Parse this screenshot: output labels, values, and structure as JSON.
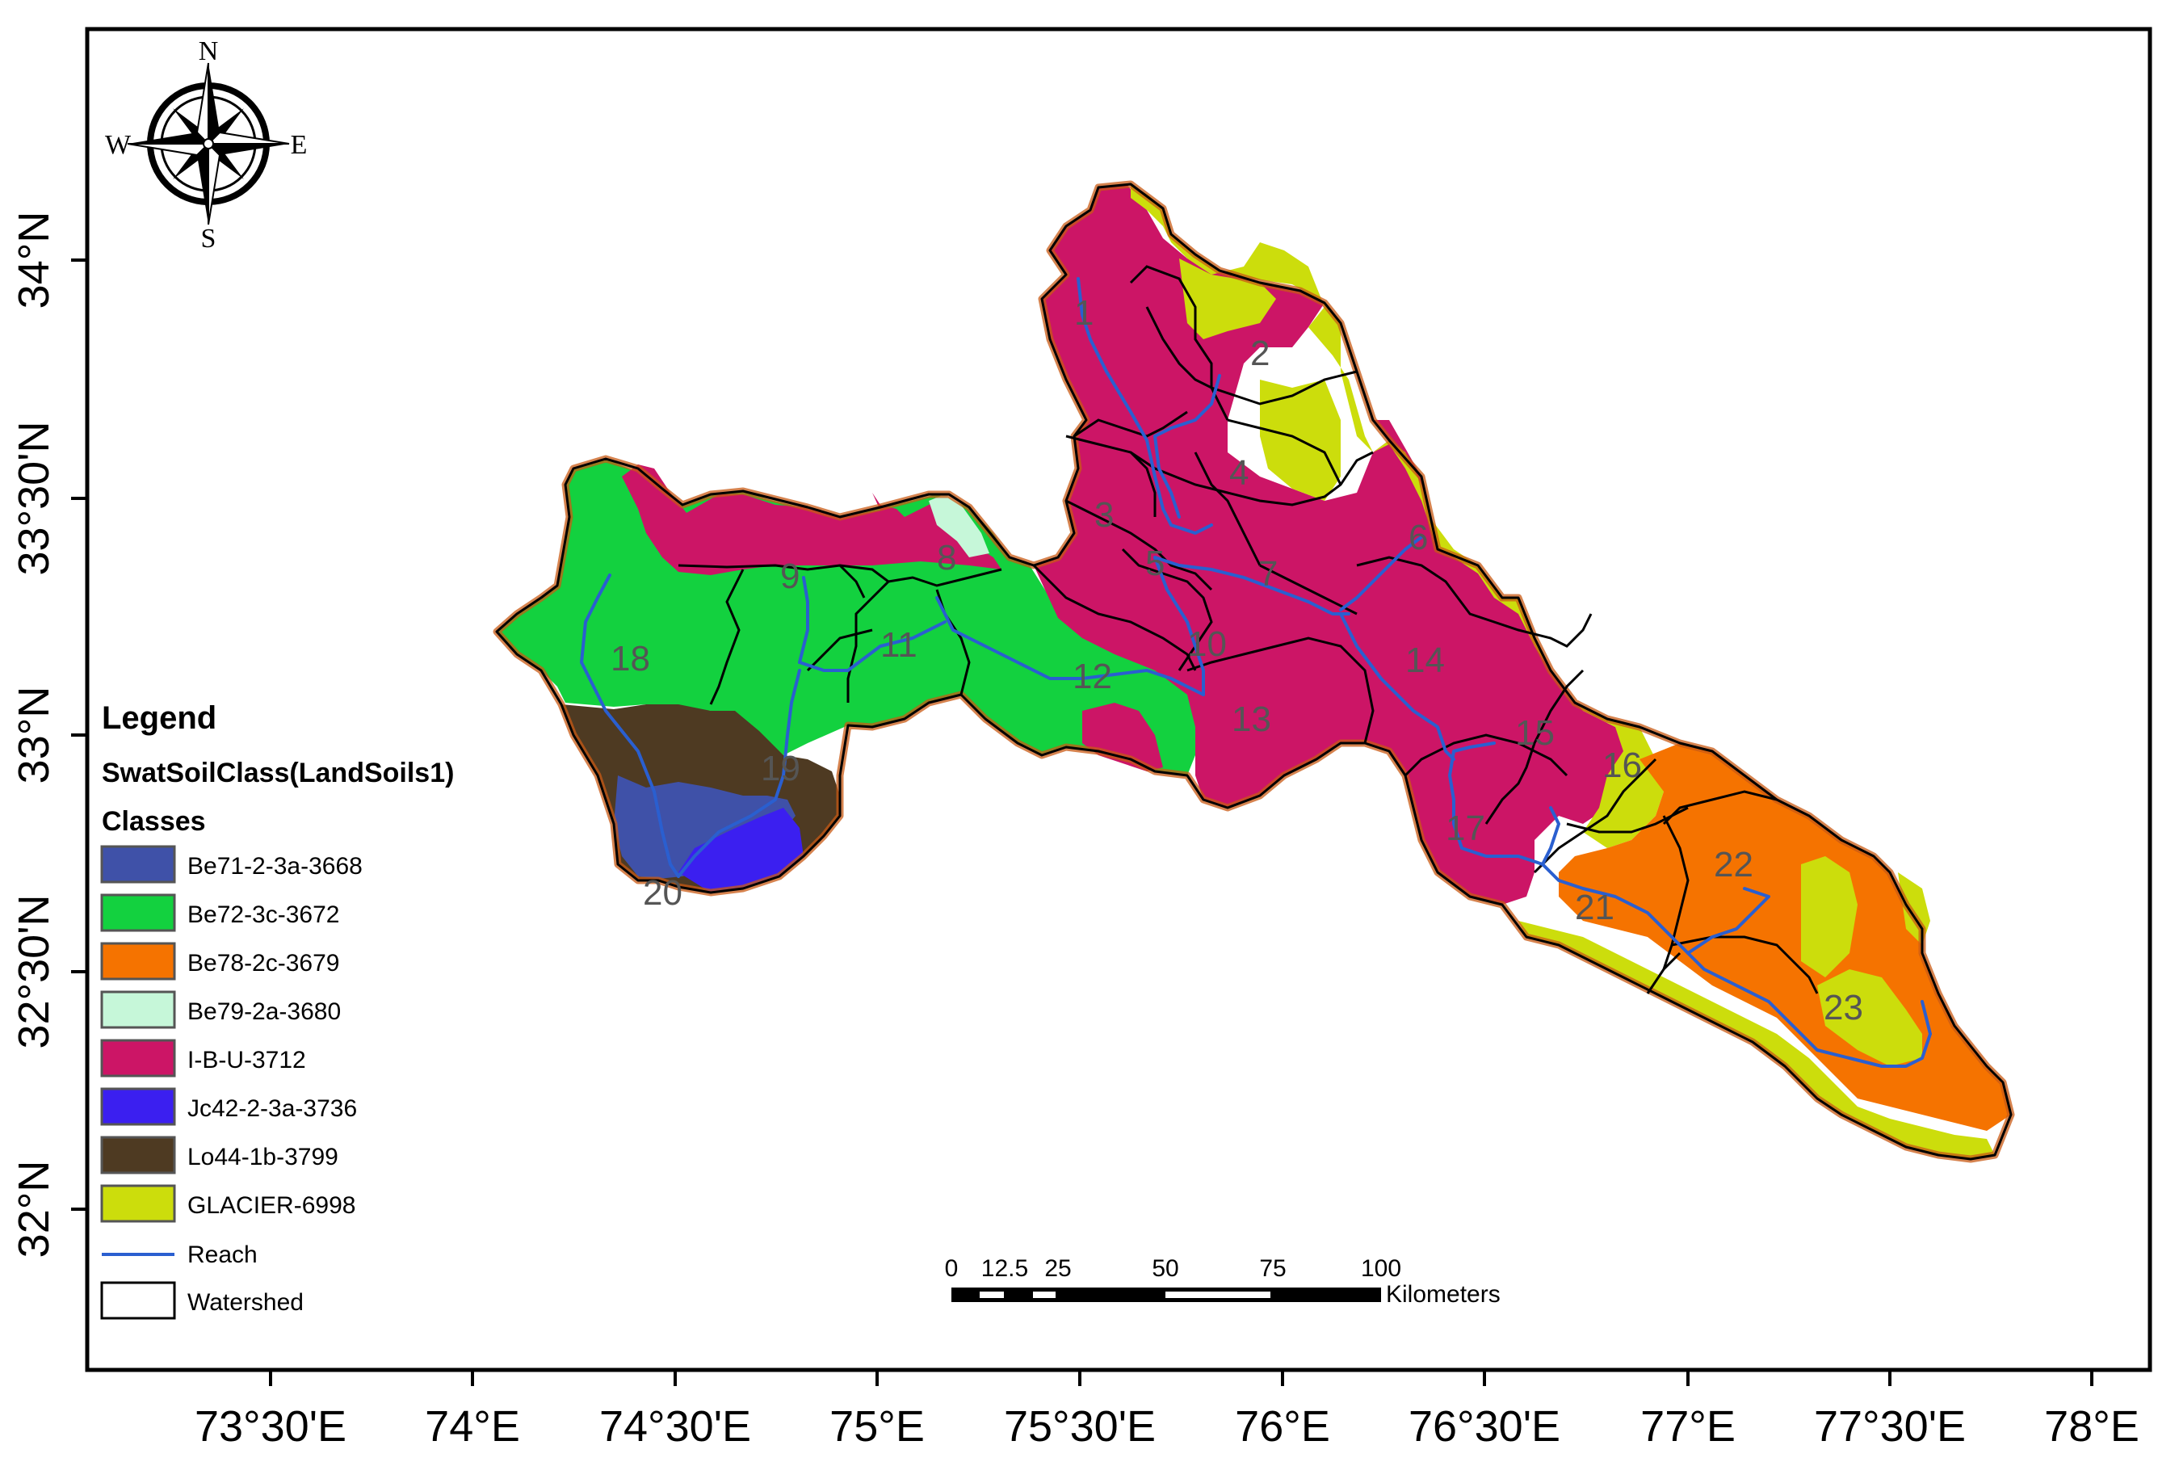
{
  "colors": {
    "Be71-2-3a-3668": "#3f51a8",
    "Be72-3c-3672": "#13d13f",
    "Be78-2c-3679": "#f57300",
    "Be79-2a-3680": "#c6f7d9",
    "I-B-U-3712": "#cc1566",
    "Jc42-2-3a-3736": "#3b1ff0",
    "Lo44-1b-3799": "#4e3a22",
    "GLACIER-6998": "#ccdd0c",
    "reach": "#2a5fd0",
    "outline": "#c85a14"
  },
  "compass": {
    "n": "N",
    "s": "S",
    "e": "E",
    "w": "W"
  },
  "axes": {
    "x_ticks": [
      {
        "label": "73°30'E",
        "value": 73.5
      },
      {
        "label": "74°E",
        "value": 74.0
      },
      {
        "label": "74°30'E",
        "value": 74.5
      },
      {
        "label": "75°E",
        "value": 75.0
      },
      {
        "label": "75°30'E",
        "value": 75.5
      },
      {
        "label": "76°E",
        "value": 76.0
      },
      {
        "label": "76°30'E",
        "value": 76.5
      },
      {
        "label": "77°E",
        "value": 77.0
      },
      {
        "label": "77°30'E",
        "value": 77.5
      },
      {
        "label": "78°E",
        "value": 78.0
      }
    ],
    "y_ticks": [
      {
        "label": "34°N",
        "value": 34.0
      },
      {
        "label": "33°30'N",
        "value": 33.5
      },
      {
        "label": "33°N",
        "value": 33.0
      },
      {
        "label": "32°30'N",
        "value": 32.5
      },
      {
        "label": "32°N",
        "value": 32.0
      }
    ]
  },
  "legend": {
    "title": "Legend",
    "layer": "SwatSoilClass(LandSoils1)",
    "classes_label": "Classes",
    "classes": [
      {
        "label": "Be71-2-3a-3668",
        "color": "#3f51a8"
      },
      {
        "label": "Be72-3c-3672",
        "color": "#13d13f"
      },
      {
        "label": "Be78-2c-3679",
        "color": "#f57300"
      },
      {
        "label": "Be79-2a-3680",
        "color": "#c6f7d9"
      },
      {
        "label": "I-B-U-3712",
        "color": "#cc1566"
      },
      {
        "label": "Jc42-2-3a-3736",
        "color": "#3b1ff0"
      },
      {
        "label": "Lo44-1b-3799",
        "color": "#4e3a22"
      },
      {
        "label": "GLACIER-6998",
        "color": "#ccdd0c"
      }
    ],
    "reach_label": "Reach",
    "watershed_label": "Watershed"
  },
  "scalebar": {
    "labels": [
      "0",
      "12.5",
      "25",
      "50",
      "75",
      "100"
    ],
    "unit": "Kilometers"
  },
  "subbasins": [
    "1",
    "2",
    "3",
    "4",
    "5",
    "6",
    "7",
    "8",
    "9",
    "10",
    "11",
    "12",
    "13",
    "14",
    "15",
    "16",
    "17",
    "18",
    "19",
    "20",
    "21",
    "22",
    "23"
  ]
}
